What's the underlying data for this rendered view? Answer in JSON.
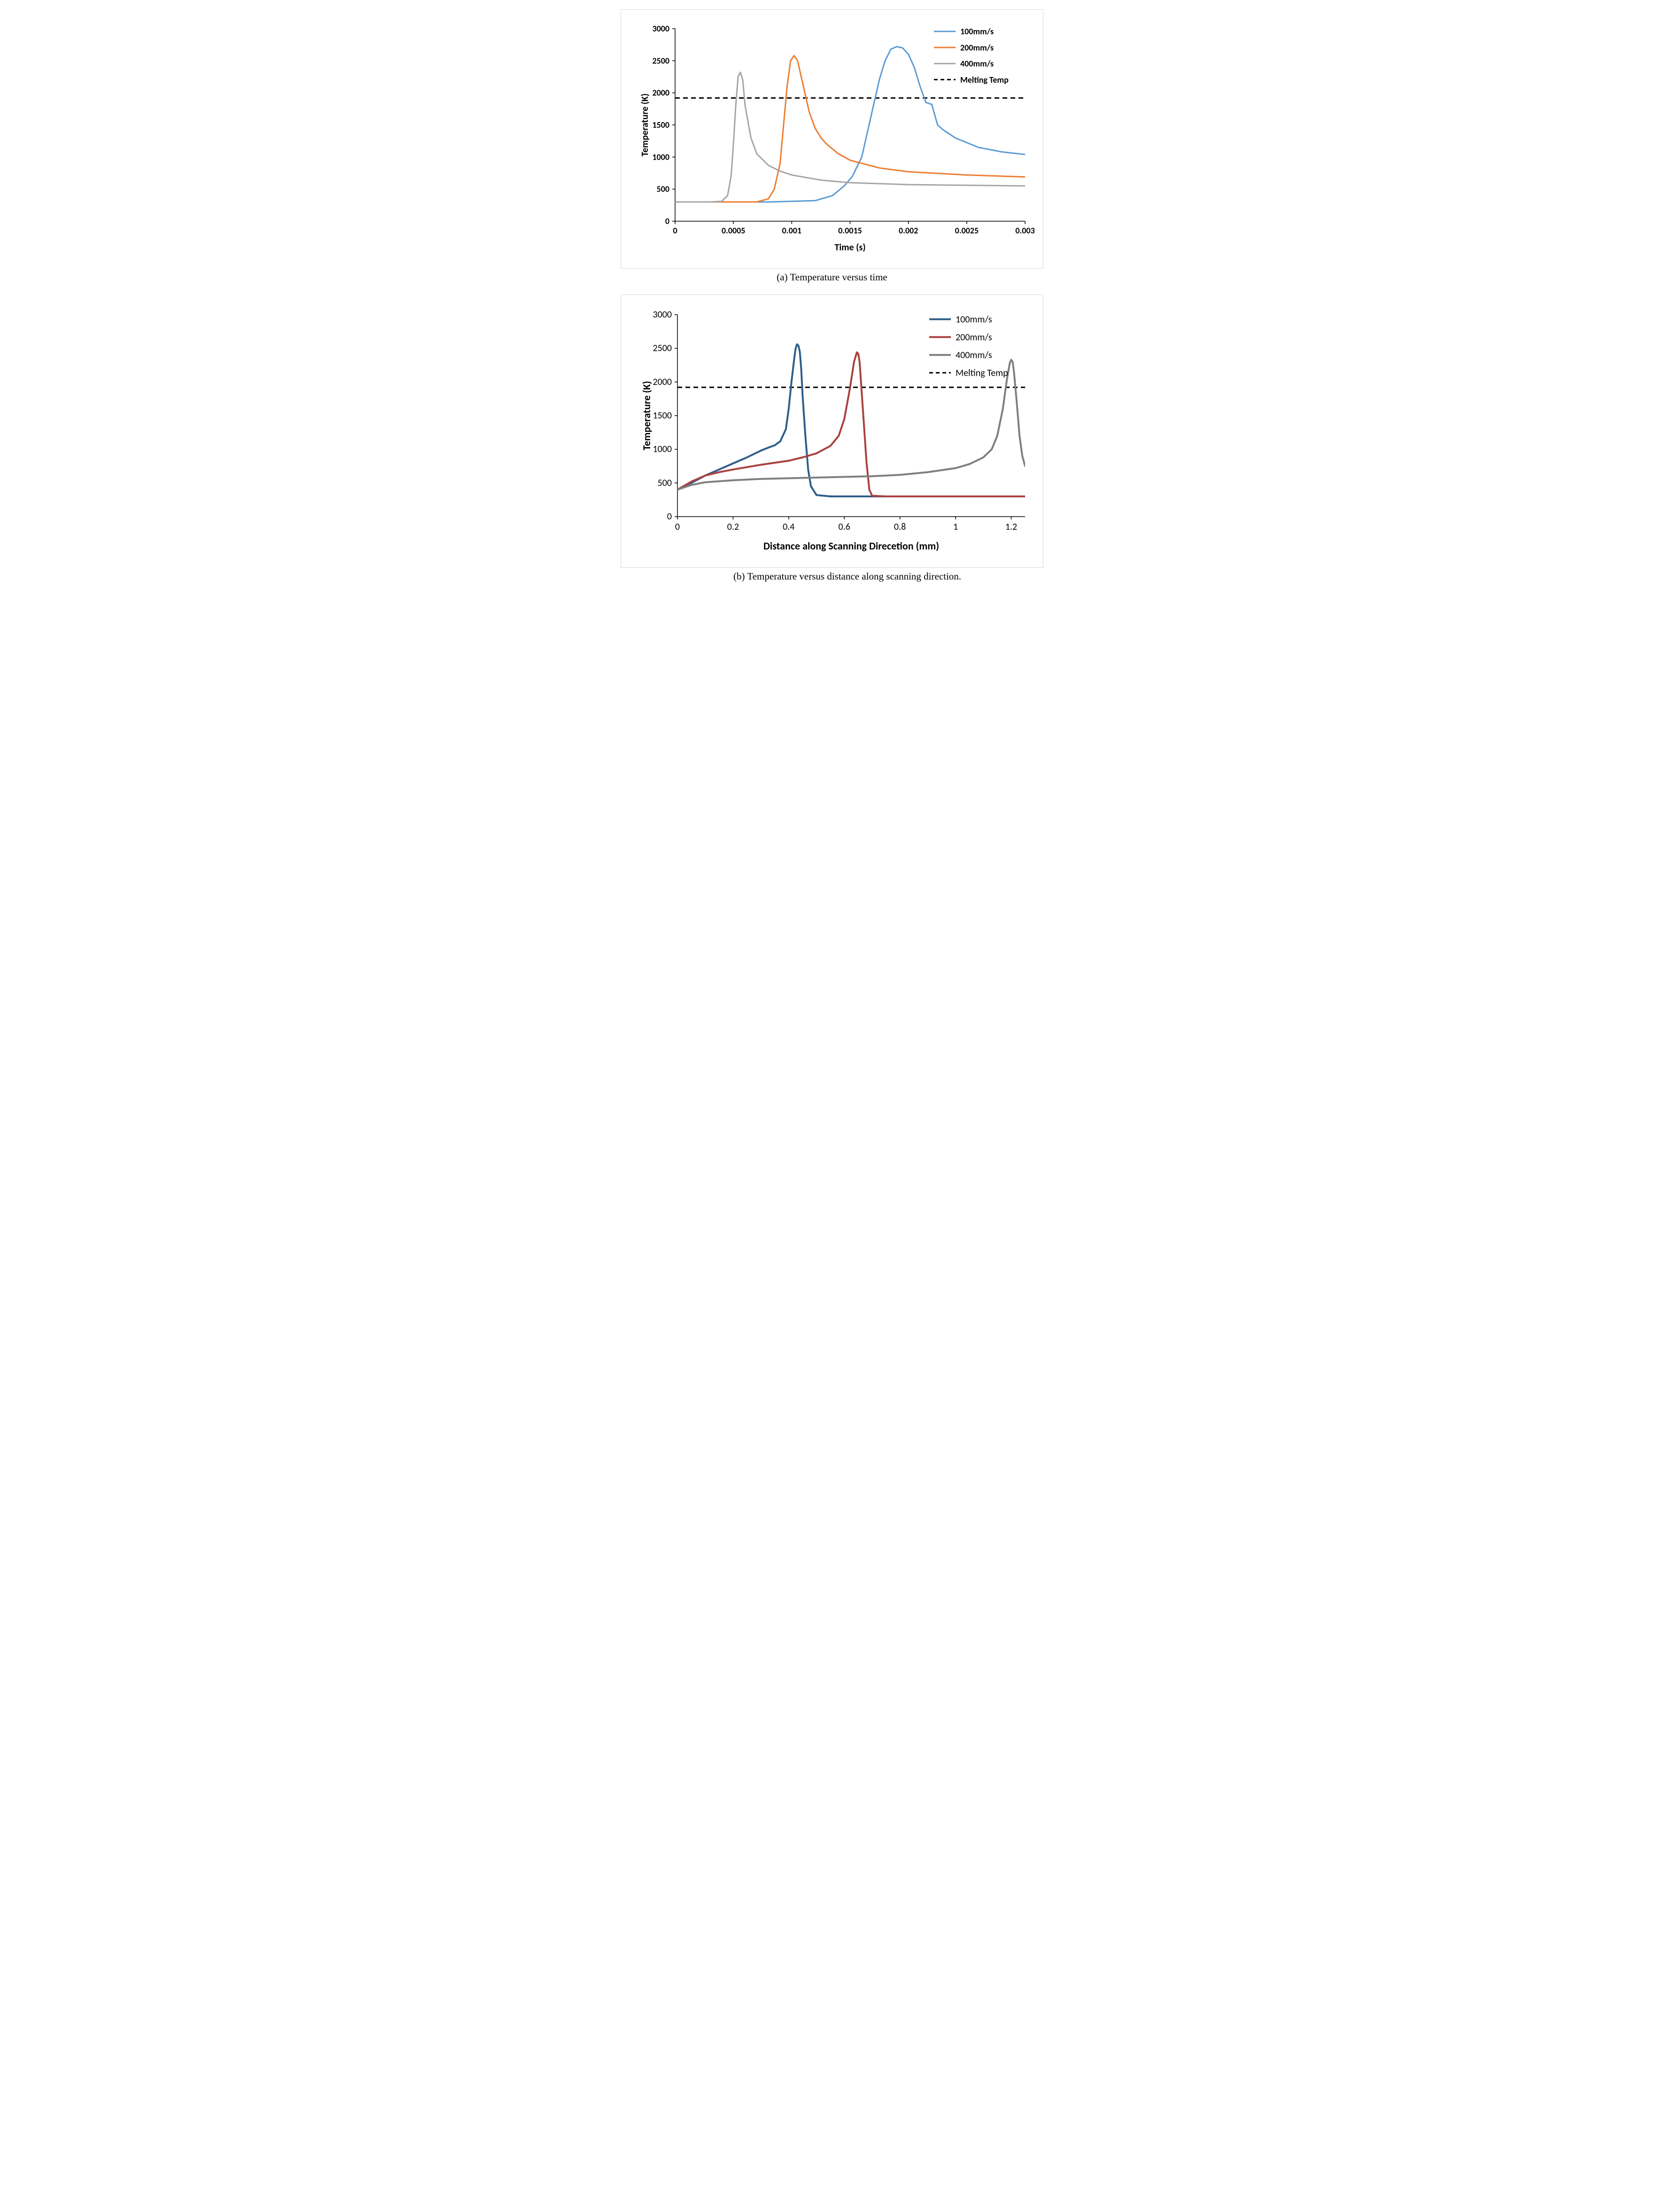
{
  "chart_a": {
    "type": "line",
    "title": "",
    "xlabel": "Time (s)",
    "ylabel": "Temperature (K)",
    "label_fontsize": 20,
    "tick_fontsize": 18,
    "xlim": [
      0,
      0.003
    ],
    "ylim": [
      0,
      3000
    ],
    "xtick_step": 0.0005,
    "ytick_step": 500,
    "xticks": [
      "0",
      "0.0005",
      "0.001",
      "0.0015",
      "0.002",
      "0.0025",
      "0.003"
    ],
    "yticks": [
      "0",
      "500",
      "1000",
      "1500",
      "2000",
      "2500",
      "3000"
    ],
    "tick_len": 6,
    "grid": false,
    "background_color": "#ffffff",
    "plot_border_color": "#000000",
    "line_width": 3,
    "melting_temp": 1920,
    "dash_pattern": "10,7",
    "dash_color": "#000000",
    "legend": {
      "items": [
        "100mm/s",
        "200mm/s",
        "400mm/s",
        "Melting Temp"
      ],
      "fontsize": 18,
      "fontweight": "bold",
      "position": "top-right",
      "border_color": "#d9d9d9"
    },
    "series": [
      {
        "name": "100mm/s",
        "color": "#5b9bd5",
        "points": [
          [
            0,
            300
          ],
          [
            0.0004,
            300
          ],
          [
            0.0008,
            300
          ],
          [
            0.0012,
            320
          ],
          [
            0.00135,
            400
          ],
          [
            0.00145,
            550
          ],
          [
            0.00152,
            700
          ],
          [
            0.0016,
            1000
          ],
          [
            0.00165,
            1400
          ],
          [
            0.0017,
            1800
          ],
          [
            0.00175,
            2200
          ],
          [
            0.0018,
            2500
          ],
          [
            0.00185,
            2680
          ],
          [
            0.0019,
            2720
          ],
          [
            0.00195,
            2700
          ],
          [
            0.002,
            2600
          ],
          [
            0.00205,
            2400
          ],
          [
            0.0021,
            2100
          ],
          [
            0.00215,
            1850
          ],
          [
            0.0022,
            1820
          ],
          [
            0.00225,
            1500
          ],
          [
            0.0023,
            1420
          ],
          [
            0.0024,
            1300
          ],
          [
            0.0026,
            1150
          ],
          [
            0.0028,
            1080
          ],
          [
            0.003,
            1040
          ]
        ]
      },
      {
        "name": "200mm/s",
        "color": "#ed7d31",
        "points": [
          [
            0,
            300
          ],
          [
            0.0004,
            300
          ],
          [
            0.0007,
            300
          ],
          [
            0.0008,
            350
          ],
          [
            0.00085,
            500
          ],
          [
            0.0009,
            900
          ],
          [
            0.00093,
            1500
          ],
          [
            0.00096,
            2100
          ],
          [
            0.00099,
            2500
          ],
          [
            0.00102,
            2580
          ],
          [
            0.00105,
            2500
          ],
          [
            0.0011,
            2100
          ],
          [
            0.00115,
            1700
          ],
          [
            0.0012,
            1450
          ],
          [
            0.00125,
            1300
          ],
          [
            0.0013,
            1200
          ],
          [
            0.0014,
            1050
          ],
          [
            0.0015,
            950
          ],
          [
            0.00175,
            830
          ],
          [
            0.002,
            770
          ],
          [
            0.0025,
            720
          ],
          [
            0.003,
            690
          ]
        ]
      },
      {
        "name": "400mm/s",
        "color": "#a5a5a5",
        "points": [
          [
            0,
            300
          ],
          [
            0.0003,
            300
          ],
          [
            0.0004,
            310
          ],
          [
            0.00045,
            400
          ],
          [
            0.00048,
            700
          ],
          [
            0.0005,
            1200
          ],
          [
            0.00052,
            1800
          ],
          [
            0.00054,
            2250
          ],
          [
            0.00056,
            2320
          ],
          [
            0.00058,
            2200
          ],
          [
            0.0006,
            1800
          ],
          [
            0.00065,
            1300
          ],
          [
            0.0007,
            1050
          ],
          [
            0.0008,
            870
          ],
          [
            0.0009,
            780
          ],
          [
            0.001,
            720
          ],
          [
            0.00125,
            640
          ],
          [
            0.0015,
            600
          ],
          [
            0.002,
            570
          ],
          [
            0.0025,
            560
          ],
          [
            0.003,
            550
          ]
        ]
      }
    ]
  },
  "caption_a": "(a)  Temperature versus time",
  "chart_b": {
    "type": "line",
    "xlabel": "Distance along Scanning Direcetion (mm)",
    "ylabel": "Temperature (K)",
    "label_fontsize": 22,
    "tick_fontsize": 20,
    "xlim": [
      0,
      1.25
    ],
    "ylim": [
      0,
      3000
    ],
    "xtick_step": 0.2,
    "ytick_step": 500,
    "xticks": [
      "0",
      "0.2",
      "0.4",
      "0.6",
      "0.8",
      "1",
      "1.2"
    ],
    "yticks": [
      "0",
      "500",
      "1000",
      "1500",
      "2000",
      "2500",
      "3000"
    ],
    "tick_len": 6,
    "grid": false,
    "background_color": "#ffffff",
    "plot_border_color": "#000000",
    "line_width": 4,
    "melting_temp": 1920,
    "dash_pattern": "10,7",
    "dash_color": "#000000",
    "legend": {
      "items": [
        "100mm/s",
        "200mm/s",
        "400mm/s",
        "Melting Temp"
      ],
      "fontsize": 20,
      "position": "top-right",
      "border_color": "#d9d9d9"
    },
    "series": [
      {
        "name": "100mm/s",
        "color": "#2e5e8a",
        "points": [
          [
            0,
            400
          ],
          [
            0.05,
            500
          ],
          [
            0.1,
            610
          ],
          [
            0.15,
            700
          ],
          [
            0.2,
            790
          ],
          [
            0.25,
            880
          ],
          [
            0.3,
            980
          ],
          [
            0.33,
            1030
          ],
          [
            0.35,
            1060
          ],
          [
            0.37,
            1120
          ],
          [
            0.39,
            1300
          ],
          [
            0.4,
            1600
          ],
          [
            0.41,
            2000
          ],
          [
            0.42,
            2350
          ],
          [
            0.425,
            2500
          ],
          [
            0.43,
            2560
          ],
          [
            0.435,
            2540
          ],
          [
            0.44,
            2450
          ],
          [
            0.445,
            2200
          ],
          [
            0.45,
            1800
          ],
          [
            0.46,
            1200
          ],
          [
            0.47,
            700
          ],
          [
            0.48,
            450
          ],
          [
            0.5,
            320
          ],
          [
            0.55,
            300
          ],
          [
            0.7,
            300
          ],
          [
            1.25,
            300
          ]
        ]
      },
      {
        "name": "200mm/s",
        "color": "#a8423f",
        "points": [
          [
            0,
            400
          ],
          [
            0.05,
            520
          ],
          [
            0.1,
            610
          ],
          [
            0.15,
            660
          ],
          [
            0.2,
            700
          ],
          [
            0.3,
            770
          ],
          [
            0.4,
            830
          ],
          [
            0.45,
            880
          ],
          [
            0.5,
            940
          ],
          [
            0.55,
            1050
          ],
          [
            0.58,
            1200
          ],
          [
            0.6,
            1450
          ],
          [
            0.62,
            1900
          ],
          [
            0.635,
            2300
          ],
          [
            0.645,
            2440
          ],
          [
            0.65,
            2420
          ],
          [
            0.655,
            2300
          ],
          [
            0.66,
            2000
          ],
          [
            0.67,
            1400
          ],
          [
            0.68,
            800
          ],
          [
            0.69,
            400
          ],
          [
            0.7,
            310
          ],
          [
            0.75,
            300
          ],
          [
            1.0,
            300
          ],
          [
            1.25,
            300
          ]
        ]
      },
      {
        "name": "400mm/s",
        "color": "#7f7f7f",
        "points": [
          [
            0,
            400
          ],
          [
            0.05,
            470
          ],
          [
            0.1,
            510
          ],
          [
            0.2,
            540
          ],
          [
            0.3,
            560
          ],
          [
            0.5,
            580
          ],
          [
            0.7,
            600
          ],
          [
            0.8,
            620
          ],
          [
            0.9,
            660
          ],
          [
            1.0,
            720
          ],
          [
            1.05,
            780
          ],
          [
            1.1,
            880
          ],
          [
            1.13,
            1000
          ],
          [
            1.15,
            1200
          ],
          [
            1.17,
            1600
          ],
          [
            1.185,
            2050
          ],
          [
            1.195,
            2280
          ],
          [
            1.2,
            2330
          ],
          [
            1.205,
            2300
          ],
          [
            1.21,
            2150
          ],
          [
            1.22,
            1700
          ],
          [
            1.23,
            1200
          ],
          [
            1.24,
            900
          ],
          [
            1.25,
            750
          ]
        ]
      }
    ]
  },
  "caption_b": "(b)  Temperature  versus  distance  along  scanning direction."
}
